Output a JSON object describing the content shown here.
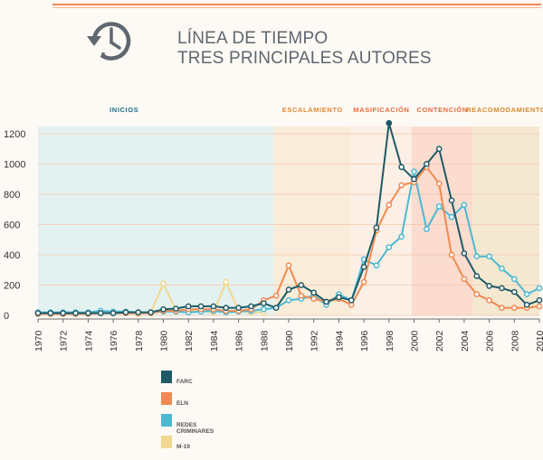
{
  "header": {
    "title_line1": "LÍNEA DE TIEMPO",
    "title_line2": "TRES PRINCIPALES AUTORES"
  },
  "icon": "clock-rewind-icon",
  "colors": {
    "farc": "#1f5a66",
    "eln": "#ef8a52",
    "redes": "#4cb8d2",
    "m19": "#f2d78f",
    "inicios_bg": "#e3f2f1",
    "escalamiento_bg": "#f9ecd8",
    "masificacion_bg": "#fcefe5",
    "contencion_bg": "#fbdccf",
    "reacomodamiento_bg": "#f4e8d0",
    "inicios_text": "#1f6f8b",
    "escalamiento_text": "#e08a3a",
    "masificacion_text": "#ec6a3a",
    "contencion_text": "#ec6a3a",
    "reacomodamiento_text": "#d38a30",
    "grid": "#f0c9ad",
    "accent_line": "#ef8a5c"
  },
  "chart_data": {
    "type": "line",
    "x": [
      1970,
      1971,
      1972,
      1973,
      1974,
      1975,
      1976,
      1977,
      1978,
      1979,
      1980,
      1981,
      1982,
      1983,
      1984,
      1985,
      1986,
      1987,
      1988,
      1989,
      1990,
      1991,
      1992,
      1993,
      1994,
      1995,
      1996,
      1997,
      1998,
      1999,
      2000,
      2001,
      2002,
      2003,
      2004,
      2005,
      2006,
      2007,
      2008,
      2009,
      2010
    ],
    "xticks": [
      "1970",
      "1972",
      "1974",
      "1976",
      "1978",
      "1980",
      "1982",
      "1984",
      "1986",
      "1988",
      "1990",
      "1992",
      "1994",
      "1996",
      "1998",
      "2000",
      "2002",
      "2004",
      "2006",
      "2008",
      "2010"
    ],
    "yticks": [
      "0",
      "200",
      "400",
      "600",
      "800",
      "1000",
      "1200"
    ],
    "ylim": [
      0,
      1200
    ],
    "xlim": [
      1970,
      2010
    ],
    "series": [
      {
        "name": "M-19",
        "key": "m19",
        "values": [
          15,
          15,
          15,
          15,
          15,
          15,
          20,
          15,
          10,
          20,
          210,
          30,
          30,
          30,
          20,
          220,
          30,
          20,
          20,
          null,
          null,
          null,
          null,
          null,
          null,
          null,
          null,
          null,
          null,
          null,
          null,
          null,
          null,
          null,
          null,
          null,
          null,
          null,
          null,
          null,
          null
        ]
      },
      {
        "name": "REDES CRIMINARES",
        "key": "redes",
        "values": [
          20,
          20,
          20,
          20,
          20,
          30,
          25,
          25,
          20,
          20,
          25,
          25,
          20,
          25,
          30,
          20,
          25,
          30,
          40,
          50,
          100,
          110,
          130,
          70,
          140,
          100,
          370,
          330,
          450,
          520,
          950,
          570,
          720,
          650,
          730,
          390,
          390,
          310,
          240,
          140,
          180
        ]
      },
      {
        "name": "ELN",
        "key": "eln",
        "values": [
          10,
          10,
          10,
          10,
          10,
          15,
          15,
          15,
          15,
          15,
          30,
          30,
          40,
          40,
          40,
          30,
          30,
          40,
          100,
          130,
          330,
          130,
          110,
          90,
          110,
          70,
          220,
          560,
          730,
          860,
          880,
          980,
          870,
          400,
          240,
          140,
          100,
          50,
          50,
          50,
          60
        ]
      },
      {
        "name": "FARC",
        "key": "farc",
        "values": [
          15,
          15,
          15,
          15,
          15,
          15,
          15,
          20,
          20,
          20,
          40,
          45,
          60,
          60,
          60,
          50,
          50,
          60,
          80,
          50,
          170,
          200,
          150,
          90,
          120,
          100,
          320,
          580,
          1270,
          980,
          900,
          1000,
          1100,
          760,
          410,
          260,
          195,
          180,
          155,
          70,
          100
        ]
      }
    ],
    "phases": [
      {
        "label": "INICIOS",
        "start": 1970,
        "end": 1988.8,
        "key": "inicios"
      },
      {
        "label": "ESCALAMIENTO",
        "start": 1988.8,
        "end": 1995,
        "key": "escalamiento"
      },
      {
        "label": "MASIFICACIÓN",
        "start": 1995,
        "end": 1999.8,
        "key": "masificacion"
      },
      {
        "label": "CONTENCIÓN",
        "start": 1999.8,
        "end": 2004.7,
        "key": "contencion"
      },
      {
        "label": "REACOMODAMIENTO",
        "start": 2004.7,
        "end": 2010,
        "key": "reacomodamiento"
      }
    ],
    "legend": [
      {
        "label": "FARC",
        "key": "farc"
      },
      {
        "label": "ELN",
        "key": "eln"
      },
      {
        "label": "REDES CRIMINARES",
        "key": "redes"
      },
      {
        "label": "M-19",
        "key": "m19"
      }
    ]
  }
}
